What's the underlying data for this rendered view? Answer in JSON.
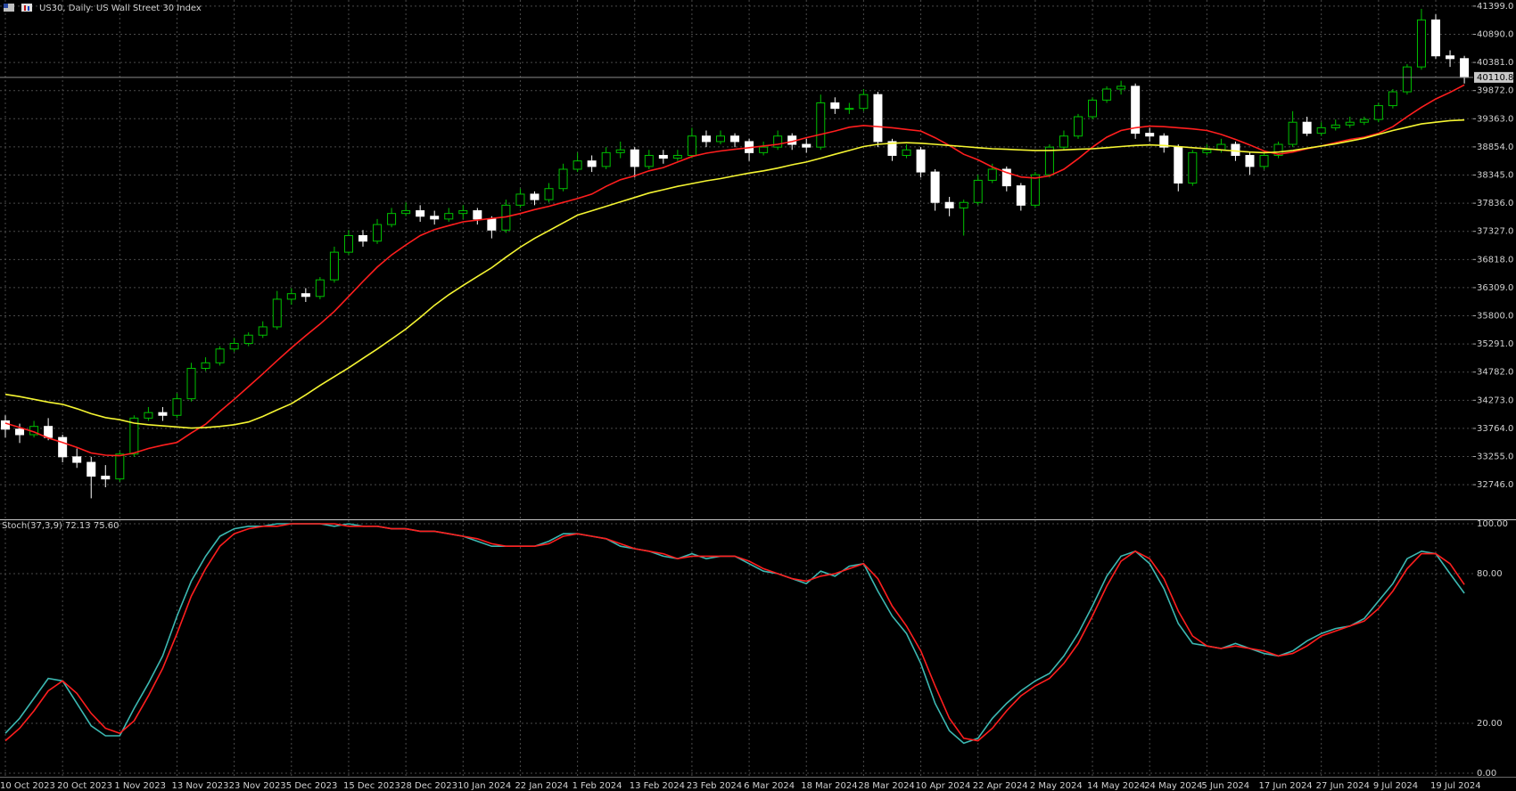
{
  "chart_data": {
    "type": "candlestick",
    "title": "US30, Daily:  US Wall Street 30 Index",
    "categories": [
      "10 Oct 2023",
      null,
      null,
      null,
      "20 Oct 2023",
      null,
      null,
      null,
      "1 Nov 2023",
      null,
      null,
      null,
      "13 Nov 2023",
      null,
      null,
      null,
      "23 Nov 2023",
      null,
      null,
      null,
      "5 Dec 2023",
      null,
      null,
      null,
      "15 Dec 2023",
      null,
      null,
      null,
      "28 Dec 2023",
      null,
      null,
      null,
      "10 Jan 2024",
      null,
      null,
      null,
      "22 Jan 2024",
      null,
      null,
      null,
      "1 Feb 2024",
      null,
      null,
      null,
      "13 Feb 2024",
      null,
      null,
      null,
      "23 Feb 2024",
      null,
      null,
      null,
      "6 Mar 2024",
      null,
      null,
      null,
      "18 Mar 2024",
      null,
      null,
      null,
      "28 Mar 2024",
      null,
      null,
      null,
      "10 Apr 2024",
      null,
      null,
      null,
      "22 Apr 2024",
      null,
      null,
      null,
      "2 May 2024",
      null,
      null,
      null,
      "14 May 2024",
      null,
      null,
      null,
      "24 May 2024",
      null,
      null,
      null,
      "5 Jun 2024",
      null,
      null,
      null,
      "17 Jun 2024",
      null,
      null,
      null,
      "27 Jun 2024",
      null,
      null,
      null,
      "9 Jul 2024",
      null,
      null,
      null,
      "19 Jul 2024",
      null,
      null
    ],
    "candles": [
      [
        33900,
        34000,
        33600,
        33750
      ],
      [
        33750,
        33850,
        33500,
        33650
      ],
      [
        33650,
        33900,
        33600,
        33800
      ],
      [
        33800,
        33950,
        33550,
        33600
      ],
      [
        33600,
        33650,
        33150,
        33250
      ],
      [
        33250,
        33400,
        33050,
        33150
      ],
      [
        33150,
        33250,
        32500,
        32900
      ],
      [
        32900,
        33100,
        32700,
        32850
      ],
      [
        32850,
        33350,
        32800,
        33300
      ],
      [
        33300,
        34000,
        33250,
        33950
      ],
      [
        33950,
        34150,
        33900,
        34050
      ],
      [
        34050,
        34150,
        33900,
        34000
      ],
      [
        34000,
        34400,
        33950,
        34300
      ],
      [
        34300,
        34950,
        34250,
        34850
      ],
      [
        34850,
        35050,
        34800,
        34950
      ],
      [
        34950,
        35250,
        34900,
        35200
      ],
      [
        35200,
        35400,
        35150,
        35300
      ],
      [
        35300,
        35500,
        35250,
        35450
      ],
      [
        35450,
        35700,
        35400,
        35600
      ],
      [
        35600,
        36250,
        35550,
        36100
      ],
      [
        36100,
        36300,
        36000,
        36200
      ],
      [
        36200,
        36300,
        36050,
        36150
      ],
      [
        36150,
        36500,
        36100,
        36450
      ],
      [
        36450,
        37050,
        36400,
        36950
      ],
      [
        36950,
        37350,
        36900,
        37250
      ],
      [
        37250,
        37350,
        37050,
        37150
      ],
      [
        37150,
        37550,
        37100,
        37450
      ],
      [
        37450,
        37750,
        37400,
        37650
      ],
      [
        37650,
        37850,
        37600,
        37700
      ],
      [
        37700,
        37800,
        37500,
        37600
      ],
      [
        37600,
        37700,
        37450,
        37550
      ],
      [
        37550,
        37750,
        37500,
        37650
      ],
      [
        37650,
        37800,
        37550,
        37700
      ],
      [
        37700,
        37750,
        37450,
        37550
      ],
      [
        37550,
        37600,
        37200,
        37350
      ],
      [
        37350,
        37900,
        37300,
        37800
      ],
      [
        37800,
        38100,
        37750,
        38000
      ],
      [
        38000,
        38050,
        37800,
        37900
      ],
      [
        37900,
        38200,
        37850,
        38100
      ],
      [
        38100,
        38550,
        38050,
        38450
      ],
      [
        38450,
        38750,
        38400,
        38600
      ],
      [
        38600,
        38700,
        38400,
        38500
      ],
      [
        38500,
        38850,
        38450,
        38750
      ],
      [
        38750,
        38950,
        38650,
        38800
      ],
      [
        38800,
        38850,
        38300,
        38500
      ],
      [
        38500,
        38800,
        38450,
        38700
      ],
      [
        38700,
        38800,
        38550,
        38650
      ],
      [
        38650,
        38800,
        38600,
        38700
      ],
      [
        38700,
        39200,
        38650,
        39050
      ],
      [
        39050,
        39150,
        38850,
        38950
      ],
      [
        38950,
        39150,
        38900,
        39050
      ],
      [
        39050,
        39100,
        38850,
        38950
      ],
      [
        38950,
        39000,
        38600,
        38750
      ],
      [
        38750,
        38950,
        38700,
        38850
      ],
      [
        38850,
        39150,
        38800,
        39050
      ],
      [
        39050,
        39100,
        38800,
        38900
      ],
      [
        38900,
        39000,
        38750,
        38850
      ],
      [
        38850,
        39800,
        38800,
        39650
      ],
      [
        39650,
        39750,
        39450,
        39550
      ],
      [
        39550,
        39650,
        39450,
        39550
      ],
      [
        39550,
        39900,
        39500,
        39800
      ],
      [
        39800,
        39850,
        38850,
        38950
      ],
      [
        38950,
        39000,
        38600,
        38700
      ],
      [
        38700,
        38900,
        38650,
        38800
      ],
      [
        38800,
        38850,
        38300,
        38400
      ],
      [
        38400,
        38450,
        37700,
        37850
      ],
      [
        37850,
        37950,
        37600,
        37750
      ],
      [
        37750,
        37900,
        37250,
        37850
      ],
      [
        37850,
        38350,
        37800,
        38250
      ],
      [
        38250,
        38550,
        38200,
        38450
      ],
      [
        38450,
        38500,
        38050,
        38150
      ],
      [
        38150,
        38200,
        37700,
        37800
      ],
      [
        37800,
        38400,
        37750,
        38350
      ],
      [
        38350,
        38900,
        38300,
        38850
      ],
      [
        38850,
        39150,
        38800,
        39050
      ],
      [
        39050,
        39450,
        39000,
        39400
      ],
      [
        39400,
        39750,
        39350,
        39700
      ],
      [
        39700,
        39950,
        39650,
        39900
      ],
      [
        39900,
        40050,
        39800,
        39950
      ],
      [
        39950,
        40000,
        39000,
        39100
      ],
      [
        39100,
        39200,
        38950,
        39050
      ],
      [
        39050,
        39100,
        38750,
        38850
      ],
      [
        38850,
        38900,
        38050,
        38200
      ],
      [
        38200,
        38800,
        38150,
        38750
      ],
      [
        38750,
        38900,
        38700,
        38800
      ],
      [
        38800,
        39000,
        38750,
        38900
      ],
      [
        38900,
        38950,
        38600,
        38700
      ],
      [
        38700,
        38750,
        38350,
        38500
      ],
      [
        38500,
        38750,
        38450,
        38700
      ],
      [
        38700,
        38950,
        38650,
        38900
      ],
      [
        38900,
        39500,
        38850,
        39300
      ],
      [
        39300,
        39400,
        39050,
        39100
      ],
      [
        39100,
        39300,
        39050,
        39200
      ],
      [
        39200,
        39350,
        39150,
        39250
      ],
      [
        39250,
        39400,
        39200,
        39300
      ],
      [
        39300,
        39400,
        39250,
        39350
      ],
      [
        39350,
        39650,
        39300,
        39600
      ],
      [
        39600,
        39900,
        39550,
        39850
      ],
      [
        39850,
        40350,
        39800,
        40300
      ],
      [
        40300,
        41350,
        40250,
        41150
      ],
      [
        41150,
        41250,
        40450,
        40500
      ],
      [
        40500,
        40600,
        40300,
        40450
      ],
      [
        40450,
        40500,
        40000,
        40110.8
      ]
    ],
    "bull_color": "#00c000",
    "bear_color": "#ffffff",
    "overlays": [
      {
        "color": "#ff1e1e",
        "values": [
          33860,
          33780,
          33700,
          33590,
          33510,
          33420,
          33320,
          33280,
          33270,
          33320,
          33400,
          33460,
          33510,
          33680,
          33840,
          34070,
          34290,
          34520,
          34750,
          34990,
          35220,
          35440,
          35650,
          35880,
          36150,
          36420,
          36680,
          36900,
          37080,
          37250,
          37360,
          37430,
          37500,
          37530,
          37560,
          37590,
          37650,
          37720,
          37780,
          37850,
          37920,
          38000,
          38140,
          38260,
          38330,
          38420,
          38480,
          38580,
          38680,
          38740,
          38780,
          38810,
          38840,
          38870,
          38900,
          38950,
          39020,
          39080,
          39140,
          39210,
          39240,
          39220,
          39200,
          39170,
          39140,
          39020,
          38880,
          38720,
          38620,
          38490,
          38390,
          38310,
          38290,
          38330,
          38450,
          38640,
          38850,
          39030,
          39150,
          39200,
          39230,
          39220,
          39200,
          39180,
          39150,
          39080,
          38990,
          38890,
          38780,
          38720,
          38760,
          38820,
          38870,
          38930,
          38990,
          39030,
          39100,
          39220,
          39400,
          39570,
          39720,
          39840,
          39975
        ]
      },
      {
        "color": "#f5f532",
        "values": [
          34380,
          34340,
          34290,
          34240,
          34200,
          34120,
          34030,
          33960,
          33920,
          33860,
          33830,
          33810,
          33790,
          33770,
          33780,
          33800,
          33830,
          33880,
          33980,
          34100,
          34210,
          34370,
          34540,
          34700,
          34860,
          35030,
          35200,
          35380,
          35560,
          35770,
          35990,
          36180,
          36350,
          36510,
          36670,
          36860,
          37040,
          37200,
          37340,
          37480,
          37620,
          37700,
          37780,
          37860,
          37940,
          38020,
          38080,
          38140,
          38190,
          38240,
          38280,
          38330,
          38380,
          38420,
          38470,
          38530,
          38580,
          38650,
          38720,
          38790,
          38860,
          38900,
          38920,
          38930,
          38920,
          38900,
          38880,
          38860,
          38840,
          38820,
          38810,
          38800,
          38790,
          38790,
          38800,
          38810,
          38820,
          38840,
          38860,
          38880,
          38890,
          38880,
          38860,
          38840,
          38820,
          38800,
          38780,
          38760,
          38750,
          38760,
          38790,
          38830,
          38870,
          38910,
          38960,
          39010,
          39080,
          39150,
          39210,
          39270,
          39300,
          39330,
          39340
        ]
      }
    ],
    "ylim": [
      32120,
      41510
    ],
    "yticks": [
      {
        "value": 41399,
        "label": "41399.0"
      },
      {
        "value": 40890,
        "label": "40890.0"
      },
      {
        "value": 40381,
        "label": "40381.0"
      },
      {
        "value": 39872,
        "label": "39872.0"
      },
      {
        "value": 39363,
        "label": "39363.0"
      },
      {
        "value": 38854,
        "label": "38854.0"
      },
      {
        "value": 38345,
        "label": "38345.0"
      },
      {
        "value": 37836,
        "label": "37836.0"
      },
      {
        "value": 37327,
        "label": "37327.0"
      },
      {
        "value": 36818,
        "label": "36818.0"
      },
      {
        "value": 36309,
        "label": "36309.0"
      },
      {
        "value": 35800,
        "label": "35800.0"
      },
      {
        "value": 35291,
        "label": "35291.0"
      },
      {
        "value": 34782,
        "label": "34782.0"
      },
      {
        "value": 34273,
        "label": "34273.0"
      },
      {
        "value": 33764,
        "label": "33764.0"
      },
      {
        "value": 33255,
        "label": "33255.0"
      },
      {
        "value": 32746,
        "label": "32746.0"
      }
    ],
    "grid": true,
    "indicator": {
      "type": "line",
      "name": "Stoch(37,3,9)",
      "readout": [
        "72.13",
        "75.60"
      ],
      "series": [
        {
          "color": "#3cb8b2",
          "values": [
            16,
            22,
            30,
            38,
            37,
            28,
            19,
            15,
            15,
            26,
            36,
            47,
            63,
            77,
            87,
            95,
            98,
            99,
            99,
            100,
            100,
            100,
            100,
            99,
            100,
            99,
            99,
            98,
            98,
            97,
            97,
            96,
            95,
            93,
            91,
            91,
            91,
            91,
            93,
            96,
            96,
            95,
            94,
            91,
            90,
            89,
            87,
            86,
            88,
            86,
            87,
            87,
            84,
            81,
            80,
            78,
            76,
            81,
            79,
            83,
            84,
            73,
            63,
            56,
            44,
            28,
            17,
            12,
            14,
            22,
            28,
            33,
            37,
            40,
            47,
            56,
            67,
            79,
            87,
            89,
            84,
            74,
            60,
            52,
            51,
            50,
            52,
            50,
            48,
            47,
            49,
            53,
            56,
            58,
            59,
            62,
            69,
            76,
            86,
            89,
            88,
            80,
            72.13
          ]
        },
        {
          "color": "#ff1e1e",
          "values": [
            13,
            18,
            25,
            33,
            37,
            32,
            24,
            18,
            16,
            21,
            31,
            42,
            56,
            71,
            82,
            91,
            96,
            98,
            99,
            99,
            100,
            100,
            100,
            100,
            99,
            99,
            99,
            98,
            98,
            97,
            97,
            96,
            95,
            94,
            92,
            91,
            91,
            91,
            92,
            95,
            96,
            95,
            94,
            92,
            90,
            89,
            88,
            86,
            87,
            87,
            87,
            87,
            85,
            82,
            80,
            78,
            77,
            79,
            80,
            82,
            84,
            78,
            67,
            59,
            49,
            35,
            22,
            14,
            13,
            18,
            25,
            31,
            35,
            38,
            44,
            52,
            63,
            75,
            85,
            89,
            86,
            78,
            65,
            55,
            51,
            50,
            51,
            50,
            49,
            47,
            48,
            51,
            55,
            57,
            59,
            61,
            66,
            73,
            82,
            88,
            88,
            84,
            75.6
          ]
        }
      ],
      "ylim": [
        0,
        100
      ],
      "yticks": [
        {
          "value": 100,
          "label": "100.00"
        },
        {
          "value": 80,
          "label": "80.00"
        },
        {
          "value": 20,
          "label": "20.00"
        },
        {
          "value": 0,
          "label": "0.00"
        }
      ]
    }
  }
}
